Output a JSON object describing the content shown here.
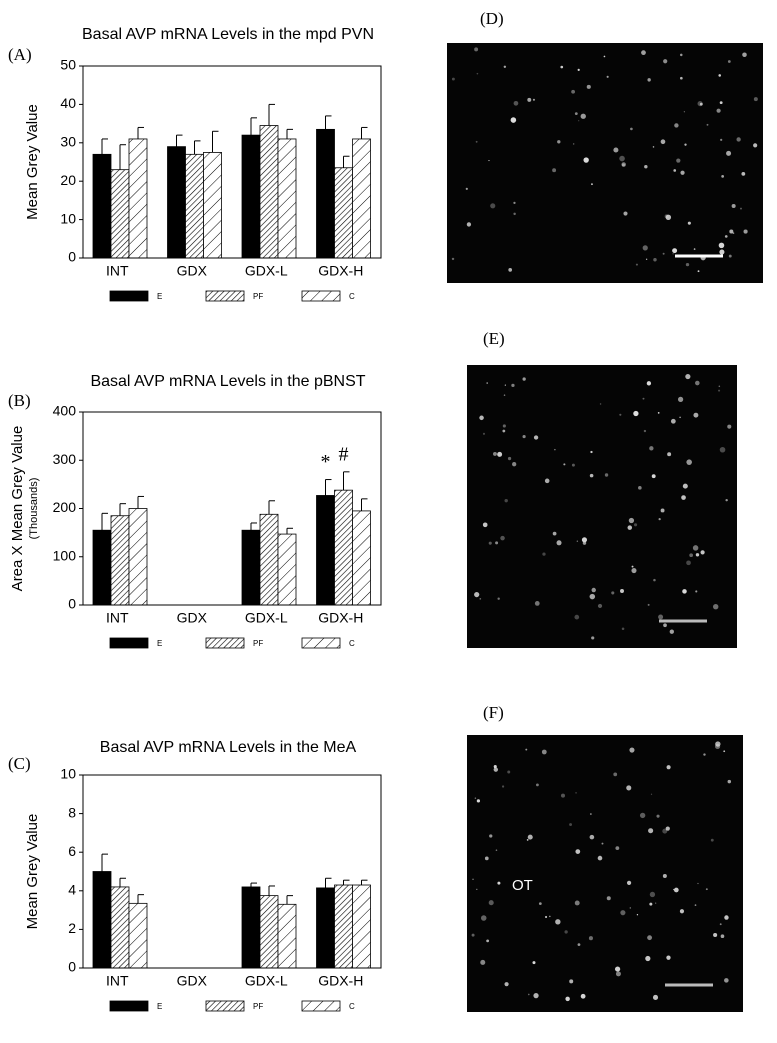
{
  "chart_data": [
    {
      "type": "bar",
      "panel": "(A)",
      "title": "Basal AVP mRNA Levels in the mpd PVN",
      "y_label": "Mean Grey Value",
      "categories": [
        "INT",
        "GDX",
        "GDX-L",
        "GDX-H"
      ],
      "series": [
        {
          "name": "E",
          "color": "#000000",
          "values": [
            27,
            29,
            32,
            33.5
          ],
          "errors": [
            4,
            3,
            4.5,
            3.5
          ]
        },
        {
          "name": "PF",
          "color": "#000000",
          "values": [
            23,
            27,
            34.5,
            23.5
          ],
          "errors": [
            6.5,
            3.5,
            5.5,
            3
          ]
        },
        {
          "name": "C",
          "color": "#000000",
          "values": [
            31,
            27.5,
            31,
            31
          ],
          "errors": [
            3,
            5.5,
            2.5,
            3
          ]
        }
      ],
      "ylim": [
        0,
        50
      ],
      "yticks": [
        0,
        10,
        20,
        30,
        40,
        50
      ]
    },
    {
      "type": "bar",
      "panel": "(B)",
      "title": "Basal AVP mRNA Levels in the pBNST",
      "y_label": "Area X Mean Grey Value",
      "y_label_note": "(Thousands)",
      "categories": [
        "INT",
        "GDX",
        "GDX-L",
        "GDX-H"
      ],
      "series": [
        {
          "name": "E",
          "color": "#000000",
          "values": [
            155,
            null,
            155,
            227
          ],
          "errors": [
            35,
            null,
            15,
            33
          ]
        },
        {
          "name": "PF",
          "color": "#000000",
          "values": [
            185,
            null,
            188,
            238
          ],
          "errors": [
            25,
            null,
            28,
            38
          ]
        },
        {
          "name": "C",
          "color": "#000000",
          "values": [
            200,
            null,
            147,
            195
          ],
          "errors": [
            25,
            null,
            12,
            25
          ]
        }
      ],
      "annotations": [
        "*",
        "#"
      ],
      "ylim": [
        0,
        400
      ],
      "yticks": [
        0,
        100,
        200,
        300,
        400
      ]
    },
    {
      "type": "bar",
      "panel": "(C)",
      "title": "Basal AVP mRNA Levels in the MeA",
      "y_label": "Mean Grey Value",
      "categories": [
        "INT",
        "GDX",
        "GDX-L",
        "GDX-H"
      ],
      "series": [
        {
          "name": "E",
          "color": "#000000",
          "values": [
            5,
            null,
            4.2,
            4.15
          ],
          "errors": [
            0.9,
            null,
            0.2,
            0.5
          ]
        },
        {
          "name": "PF",
          "color": "#000000",
          "values": [
            4.2,
            null,
            3.75,
            4.3
          ],
          "errors": [
            0.45,
            null,
            0.5,
            0.25
          ]
        },
        {
          "name": "C",
          "color": "#000000",
          "values": [
            3.35,
            null,
            3.3,
            4.3
          ],
          "errors": [
            0.45,
            null,
            0.45,
            0.25
          ]
        }
      ],
      "ylim": [
        0,
        10
      ],
      "yticks": [
        0,
        2,
        4,
        6,
        8,
        10
      ]
    }
  ],
  "images": [
    {
      "label": "(D)"
    },
    {
      "label": "(E)"
    },
    {
      "label": "(F)",
      "annotation": "OT"
    }
  ]
}
